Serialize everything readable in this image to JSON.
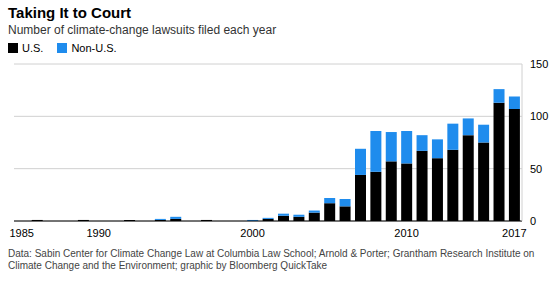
{
  "chart_data": {
    "type": "bar",
    "title": "Taking It to Court",
    "subtitle": "Number of climate-change lawsuits filed each year",
    "source": "Data: Sabin Center for Climate Change Law at Columbia Law School; Arnold & Porter; Grantham Research Institute on Climate Change and the Environment; graphic by Bloomberg QuickTake",
    "categories": [
      "1985",
      null,
      null,
      null,
      null,
      "1990",
      null,
      null,
      null,
      null,
      null,
      null,
      null,
      null,
      null,
      "2000",
      null,
      null,
      null,
      null,
      null,
      null,
      null,
      null,
      null,
      "2010",
      null,
      null,
      null,
      null,
      null,
      null,
      "2017"
    ],
    "series": [
      {
        "name": "U.S.",
        "color": "#000000",
        "values": [
          0,
          1,
          0,
          0,
          1,
          0,
          0,
          1,
          0,
          1,
          2,
          0,
          1,
          0,
          0,
          0,
          2,
          5,
          4,
          8,
          17,
          14,
          44,
          47,
          57,
          55,
          67,
          60,
          68,
          82,
          75,
          113,
          107
        ]
      },
      {
        "name": "Non-U.S.",
        "color": "#1f8ced",
        "values": [
          0,
          0,
          0,
          0,
          0,
          0,
          0,
          0,
          0,
          1,
          2,
          0,
          0,
          0,
          0,
          1,
          1,
          2,
          2,
          2,
          5,
          7,
          25,
          39,
          28,
          31,
          15,
          18,
          25,
          16,
          17,
          13,
          12
        ]
      }
    ],
    "ylim": [
      0,
      150
    ],
    "yticks": [
      0,
      50,
      100,
      150
    ],
    "grid": true,
    "stacked": true,
    "legend": "top"
  }
}
